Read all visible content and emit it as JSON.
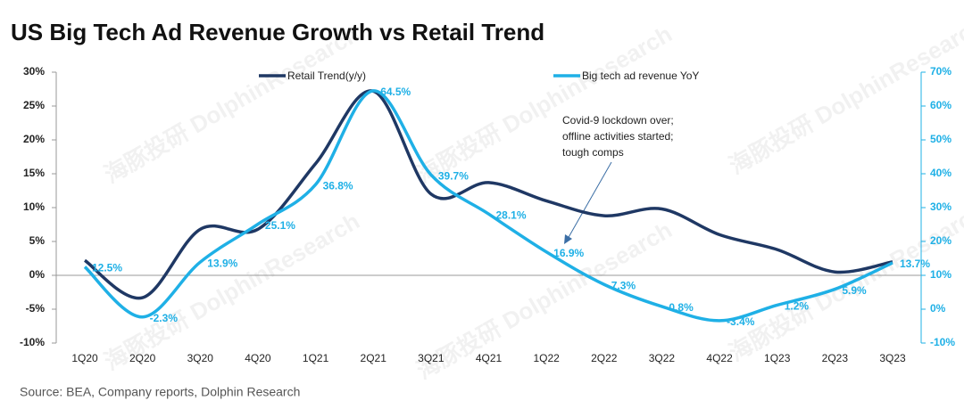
{
  "chart_data": {
    "type": "line",
    "title": "US Big Tech Ad Revenue Growth vs Retail Trend",
    "source": "Source: BEA, Company reports, Dolphin Research",
    "watermark": "海豚投研 DolphinResearch",
    "annotation": [
      "Covid-9 lockdown over;",
      "offline activities started;",
      "tough comps"
    ],
    "categories": [
      "1Q20",
      "2Q20",
      "3Q20",
      "4Q20",
      "1Q21",
      "2Q21",
      "3Q21",
      "4Q21",
      "1Q22",
      "2Q22",
      "3Q22",
      "4Q22",
      "1Q23",
      "2Q23",
      "3Q23"
    ],
    "ylim": [
      -10,
      30
    ],
    "yticks": [
      {
        "value": -10,
        "label": "-10%"
      },
      {
        "value": -5,
        "label": "-5%"
      },
      {
        "value": 0,
        "label": "0%"
      },
      {
        "value": 5,
        "label": "5%"
      },
      {
        "value": 10,
        "label": "10%"
      },
      {
        "value": 15,
        "label": "15%"
      },
      {
        "value": 20,
        "label": "20%"
      },
      {
        "value": 25,
        "label": "25%"
      },
      {
        "value": 30,
        "label": "30%"
      }
    ],
    "y2lim": [
      -10,
      70
    ],
    "y2ticks": [
      {
        "value": -10,
        "label": "-10%"
      },
      {
        "value": 0,
        "label": "0%"
      },
      {
        "value": 10,
        "label": "10%"
      },
      {
        "value": 20,
        "label": "20%"
      },
      {
        "value": 30,
        "label": "30%"
      },
      {
        "value": 40,
        "label": "40%"
      },
      {
        "value": 50,
        "label": "50%"
      },
      {
        "value": 60,
        "label": "60%"
      },
      {
        "value": 70,
        "label": "70%"
      }
    ],
    "series": [
      {
        "name": "Retail Trend(y/y)",
        "color": "#1f3864",
        "values": [
          2.2,
          -3.3,
          6.8,
          6.8,
          16.5,
          27.2,
          12.0,
          13.7,
          11.0,
          8.8,
          9.8,
          6.0,
          3.8,
          0.5,
          2.0
        ]
      },
      {
        "name": "Big tech ad revenue YoY",
        "color": "#1fb0e6",
        "axis": "y2",
        "values": [
          12.5,
          -2.3,
          13.9,
          25.1,
          36.8,
          64.5,
          39.7,
          28.1,
          16.9,
          7.3,
          0.8,
          -3.4,
          1.2,
          5.9,
          13.7
        ],
        "value_labels": [
          "12.5%",
          "-2.3%",
          "13.9%",
          "25.1%",
          "36.8%",
          "64.5%",
          "39.7%",
          "28.1%",
          "16.9%",
          "7.3%",
          "0.8%",
          "-3.4%",
          "1.2%",
          "5.9%",
          "13.7%"
        ]
      }
    ]
  }
}
